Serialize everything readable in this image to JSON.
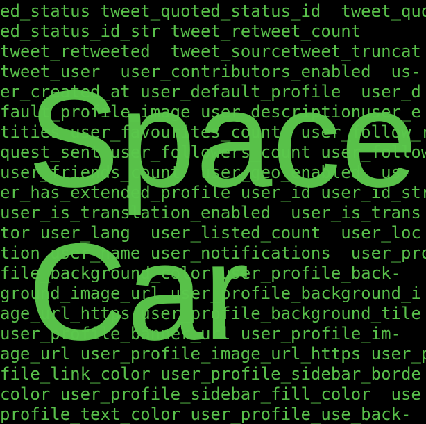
{
  "background_lines": [
    "ed_status tweet_quoted_status_id  tweet_quo",
    "ed_status_id_str tweet_retweet_count",
    "tweet_retweeted  tweet_sourcetweet_truncat",
    "tweet_user  user_contributors_enabled  us-",
    "er_created_at user_default_profile  user_d",
    "fault_profile_image user_descriptionuser_e",
    "tities user_favourites_count  user_follow_r",
    "quest_sent user_followers_count user_follow",
    "user_friends_count  user_geo_enabled  us-",
    "er_has_extended_profile user_id user_id_str",
    "user_is_translation_enabled  user_is_trans",
    "tor user_lang  user_listed_count  user_loc",
    "tion user_name user_notifications  user_pro",
    "file_background_color user_profile_back-",
    "ground_image_url user_profile_background_i",
    "age_url_https user_profile_background_tile",
    "user_profile_banner_url user_profile_im-",
    "age_url user_profile_image_url_https user_p",
    "file_link_color user_profile_sidebar_borde",
    "color user_profile_sidebar_fill_color  use",
    "profile_text_color user_profile_use_back-"
  ],
  "title_lines": [
    "Space",
    "Car"
  ]
}
